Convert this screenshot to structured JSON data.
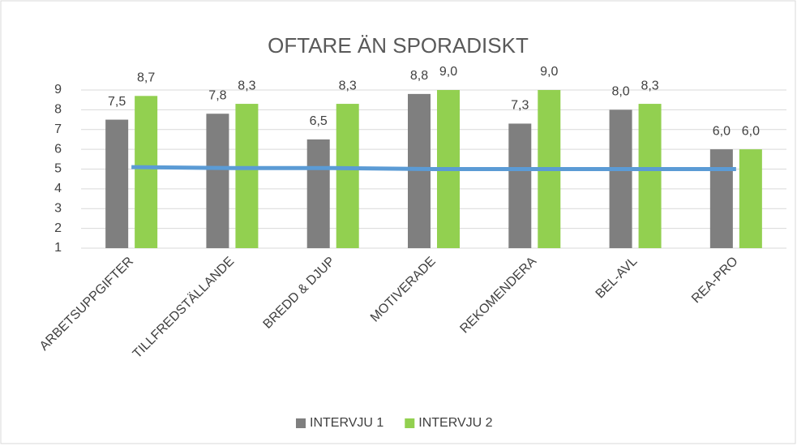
{
  "chart_data": {
    "type": "bar",
    "title": "OFTARE ÄN SPORADISKT",
    "categories": [
      "ARBETSUPPGIFTER",
      "TILLFREDSTÄLLANDE",
      "BREDD & DJUP",
      "MOTIVERADE",
      "REKOMENDERA",
      "BEL-AVL",
      "REA-PRO"
    ],
    "series": [
      {
        "name": "INTERVJU 1",
        "color": "#7f7f7f",
        "values": [
          7.5,
          7.8,
          6.5,
          8.8,
          7.3,
          8.0,
          6.0
        ],
        "value_labels": [
          "7,5",
          "7,8",
          "6,5",
          "8,8",
          "7,3",
          "8,0",
          "6,0"
        ]
      },
      {
        "name": "INTERVJU 2",
        "color": "#92d050",
        "values": [
          8.7,
          8.3,
          8.3,
          9.0,
          9.0,
          8.3,
          6.0
        ],
        "value_labels": [
          "8,7",
          "8,3",
          "8,3",
          "9,0",
          "9,0",
          "8,3",
          "6,0"
        ]
      }
    ],
    "reference_line": {
      "color": "#5b9bd5",
      "values": [
        5.1,
        5.05,
        5.05,
        5.0,
        5.0,
        5.0,
        5.0
      ]
    },
    "ylim": [
      1,
      9
    ],
    "yticks": [
      1,
      2,
      3,
      4,
      5,
      6,
      7,
      8,
      9
    ],
    "grid": true,
    "legend": "bottom"
  }
}
